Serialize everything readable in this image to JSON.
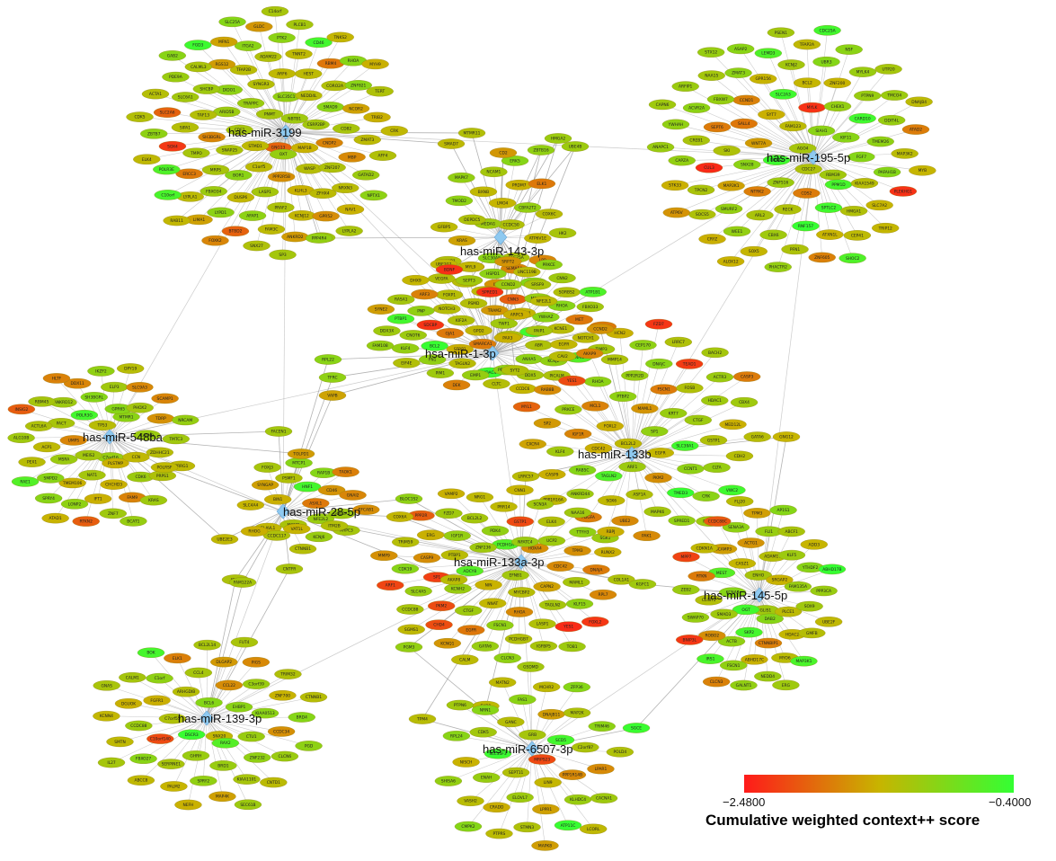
{
  "colors": {
    "low": "#ff1a1a",
    "mid": "#c8b400",
    "high": "#33ff33",
    "hub": "#8ec9f0",
    "edge": "#9a9a9a",
    "node_stroke": "#8a7a10"
  },
  "legend": {
    "min_label": "−2.4800",
    "max_label": "−0.4000",
    "title": "Cumulative weighted context++ score",
    "score_min": -2.48,
    "score_max": -0.4
  },
  "hubs": [
    {
      "id": "mir3199",
      "label": "has-miR-3199",
      "genes": [
        "GNG13",
        "STMD1",
        "PNMT",
        "OXT",
        "CDF2",
        "NBTB1",
        "C1orf5",
        "TRAPPC",
        "MAP1B",
        "SNAP25",
        "SLC35C1",
        "PPP2R5B",
        "ARID5B",
        "CSRP2BP",
        "BOR1",
        "SYNGR3",
        "WASP",
        "SH3BGRL",
        "NEDD4L",
        "LASP1",
        "DIDO1",
        "CNDP2",
        "MRPS",
        "ARF6",
        "KLHL3",
        "TAF13",
        "SMAD9",
        "DUSP6",
        "TFAP2B",
        "ZNF207",
        "TMPO",
        "HEST",
        "PRAF2",
        "SHCBP",
        "CD82",
        "FBXO34",
        "ADAM22",
        "ZFHX4",
        "SIPA1",
        "CORO2A",
        "AFAP1",
        "RGS12",
        "MBP",
        "ERCC3",
        "TNNT2",
        "KCNJ12",
        "SLC6A1",
        "NCOR2",
        "LYPD1",
        "ITGA2",
        "NRXN3",
        "SOX4",
        "RBM4",
        "FAM3C",
        "CALML3",
        "ZMAT3",
        "LYPLA1",
        "PTK2",
        "GPR52",
        "SLC2A6",
        "ZNF821",
        "BTBD2",
        "MFN1",
        "GATAD2",
        "POLR3E",
        "CD46",
        "ANKRD2",
        "PDE9A",
        "TRIB2",
        "LIMA1",
        "GLDC",
        "NAV1",
        "ZBTB7",
        "RHOA",
        "SNX27",
        "FGD3",
        "AFF4",
        "C10orf",
        "PLCB1",
        "CLSTN",
        "ACTA1",
        "TERT",
        "FOXK2",
        "SLC25A",
        "NPTX1",
        "ELK4",
        "TNKS2",
        "SP3",
        "GAB2",
        "CRK",
        "RAB11",
        "C14orf",
        "LYPLA2",
        "CDK5",
        "MYH9"
      ]
    },
    {
      "id": "mir195",
      "label": "has-miR-195-5p",
      "genes": [
        "AGO4",
        "CCNT2",
        "FAM123",
        "CDC27",
        "WNT7A",
        "SIAH1",
        "ZNF516",
        "SYT7",
        "RBM39",
        "SNX28",
        "MYLK",
        "CDS2",
        "SALL4",
        "KIF11",
        "NTRK2",
        "SLC2A3",
        "PPM1D",
        "SKI",
        "CHEK1",
        "RECK",
        "CCND1",
        "FGF7",
        "MAP2K1",
        "BCL2",
        "SPTLC2",
        "SEPT6",
        "CARD10",
        "ARL2",
        "GPR156",
        "KIAA1549",
        "CUL3",
        "ZNF200",
        "RNF157",
        "FBXW7",
        "TMEM26",
        "SMURF2",
        "KCNJ2",
        "HMGA1",
        "CREB1",
        "PTPN9",
        "CBX6",
        "ZMAT3",
        "PAFAH1B",
        "TPCN2",
        "UBR3",
        "ATXN1L",
        "ACVR2A",
        "DDIT4L",
        "WEE1",
        "LEMD3",
        "SLC7A2",
        "CAPZA",
        "MYLK4",
        "PFN1",
        "NAA15",
        "MAP3K2",
        "SOCS5",
        "TFAP2A",
        "CEP41",
        "YWHAH",
        "TMCO4",
        "SOX5",
        "ASAP2",
        "PLEKHG1",
        "STK33",
        "NSF",
        "ZNF605",
        "ARFIP1",
        "ATAD2",
        "CRYZ",
        "PSEN1",
        "TRIP12",
        "ANAPC1",
        "UTP20",
        "PHACTR2",
        "STX12",
        "MYB",
        "ATP6V",
        "CDC25A",
        "SHOC2",
        "CAPN6",
        "DNAJB4",
        "ALOX12"
      ]
    },
    {
      "id": "mir143",
      "label": "has-miR-143-3p",
      "genes": [
        "CCDC50",
        "MEDAG",
        "LMO4",
        "SLC25A",
        "DEPDC5",
        "CBFA2T2",
        "SLC30A8",
        "BXNB",
        "ATP6V1E",
        "KRAS",
        "PRDM7",
        "SEMA5A",
        "TMOD2",
        "COX6C",
        "TCCD1",
        "NCAM1",
        "LPP",
        "GFBP5",
        "ELK1",
        "IRS2",
        "MAPK7",
        "HK2",
        "ATP8B1",
        "ERK5",
        "CITED2"
      ]
    },
    {
      "id": "mir1",
      "label": "hsa-miR-1-3p",
      "genes": [
        "TWF1",
        "GPD2",
        "TRAM2",
        "FZD7",
        "KIF2A",
        "PTPLAD1",
        "SMARCA1",
        "PSMD",
        "CALR",
        "GJA1",
        "CNN3",
        "PAX3",
        "NOTCH3",
        "YWHAZ",
        "SFRP1",
        "LARP1",
        "ABR",
        "SDCBP",
        "MEOX2",
        "HDAC4",
        "FOXP1",
        "KCNE1",
        "BCL2",
        "CCND2",
        "ANXA5",
        "PNP",
        "RHOA",
        "TAGLN2",
        "SLC1A3",
        "EGFR",
        "CNOT6",
        "SRSF9",
        "PPP2R5A",
        "ARF3",
        "MET",
        "FN1",
        "HSPD1",
        "KCNJ2",
        "PTBP1",
        "SORBS2",
        "EMP1",
        "VEGFA",
        "NOTCH1",
        "KLF4",
        "UNC119B",
        "DDX5",
        "RASA1",
        "FBXO33",
        "PIM1",
        "MYL9",
        "SNAI2",
        "DDX3X",
        "CNN2",
        "CLTC",
        "DHX9",
        "TAGLN",
        "EIF4E",
        "SRP72",
        "PICALM",
        "SYNE2",
        "ATP1B1",
        "DEK",
        "UBE2G1",
        "TIMP3",
        "FAM108",
        "PRKCE",
        "CCDC6"
      ]
    },
    {
      "id": "mir548",
      "label": "has-miR-548ba",
      "genes": [
        "C7orf16",
        "MEIS2",
        "TP53",
        "PLSTMP",
        "UMPS",
        "MTMR1",
        "NAT1",
        "POLR3G",
        "CCN",
        "MSRA",
        "GPR65",
        "CHCHD3",
        "PACT",
        "CACNB",
        "TMEM106",
        "SH3BGRL",
        "CDK6",
        "ACP1",
        "PHOX2",
        "IFT1",
        "ANKRD12",
        "ZDHHC21",
        "SMPD2",
        "ELP3",
        "FAM9",
        "ACTL6A",
        "TDRP",
        "LONP2",
        "DDX11",
        "PRPS1",
        "PEX1",
        "SLC9A3",
        "ZNF7",
        "RBM45",
        "TMTC3",
        "SPRY4",
        "IKZF2",
        "KRAS",
        "ALG10B",
        "SCAMP1",
        "RTKN2",
        "HLTF",
        "PRRG1",
        "RAE1",
        "DPY19",
        "BCAT1",
        "INSIG2",
        "NRCAM",
        "ATAD1"
      ]
    },
    {
      "id": "mir28",
      "label": "has-miR-28-5p",
      "genes": [
        "ASXL1",
        "MCMB",
        "HNF1",
        "NFE2L2",
        "BIN1",
        "CD46",
        "VAT1L",
        "PSMF1",
        "GOLGA2",
        "ELAVL1",
        "RAP1B",
        "KCNJ6",
        "SYNGAP",
        "GNAI2",
        "CCDC117",
        "MTCP1",
        "ARPC3",
        "SLC4A4",
        "TAOK1",
        "CTNNB1",
        "FOXJ3",
        "EFCAB1",
        "RHOG"
      ]
    },
    {
      "id": "mir133b",
      "label": "has-miR-133b",
      "genes": [
        "SP1",
        "BCL2L2",
        "MAML1",
        "EGFR",
        "FOXL2",
        "KRT7",
        "ARF1",
        "PTBP2",
        "SLC39A1",
        "CDC42",
        "FSCN1",
        "PKM2",
        "MCL1",
        "CTGF",
        "TAGLN2",
        "PPP2R2D",
        "CCNT1",
        "IGF1R",
        "FOSB",
        "ASF1A",
        "RHOA",
        "GSTP1",
        "RAB5C",
        "DNAJC",
        "TMED3",
        "PRKCE",
        "HDAC1",
        "SOX6",
        "MMP14",
        "CLTA",
        "KLF4",
        "TEAD1",
        "MAPK6",
        "YES1",
        "MED12L",
        "ANKRD44",
        "CEP170",
        "CRK",
        "SP2",
        "ACTR3",
        "UBE2",
        "AKAP9",
        "CDH2",
        "CASP9",
        "LRRC7",
        "SPRED1",
        "RAB8B",
        "CBX4",
        "PDGFA",
        "HCN2",
        "VWC2",
        "CXCR4",
        "BACH2",
        "PAK1",
        "CAV2",
        "GATA6",
        "PPP1R16A",
        "FZD7",
        "PTPRD",
        "MYL1",
        "CASP3",
        "SGK1"
      ]
    },
    {
      "id": "mir133a",
      "label": "hsa-miR-133a-3p",
      "genes": [
        "EFNB1",
        "NIN",
        "PCDHGA",
        "MYCBP2",
        "ADCY8",
        "HOXA4",
        "NNAT",
        "ZNF236",
        "CAPN2",
        "KCNH2",
        "NFATC4",
        "RHOA",
        "PTBP1",
        "CDC42",
        "CTGF",
        "PDK4",
        "TAGLN2",
        "SP1",
        "UCP2",
        "FSCN1",
        "IGF1R",
        "MAML1",
        "PKM2",
        "GSTP1",
        "LASP1",
        "CASP9",
        "TPM3",
        "EGFR",
        "BCL2L2",
        "KLF15",
        "SLC4A5",
        "ELK4",
        "PCDHGB7",
        "ERG",
        "DNAJA",
        "CHD4",
        "PRR14",
        "YES1",
        "CDK19",
        "TTYH3",
        "GATA6",
        "FZD7",
        "RPL7",
        "CCDC88",
        "SCN3A",
        "IGFBP5",
        "TRIM59",
        "RUNX2",
        "KCNQ1",
        "NRG1",
        "FOXL2",
        "ARF1",
        "NAA16",
        "CLCN3",
        "PPP2R",
        "COL1A1",
        "SGMS1",
        "CNN1",
        "TOB1",
        "MMP9",
        "RBPJ",
        "CALM",
        "VAMP2"
      ]
    },
    {
      "id": "mir145",
      "label": "has-miR-145-5p",
      "genes": [
        "GLIS1",
        "OGT",
        "ENHO",
        "DAB2",
        "KCNA4",
        "SRGAP2",
        "SKP2",
        "CASZ1",
        "PLCE1",
        "SMAD3",
        "ADAM17",
        "CTNNBIP1",
        "MEST",
        "FAM135A",
        "ACTB",
        "ACTG1",
        "HDAC2",
        "CLINT1",
        "KLF5",
        "ABHD17C",
        "SCAMP3",
        "SOX9",
        "ROBO2",
        "FLI1",
        "MYO6",
        "RTKN",
        "YTHDF2",
        "FSCN1",
        "SENA3A",
        "GMFB",
        "SWAP70",
        "ABCF1",
        "NEDD4",
        "CDKN1A",
        "PPP3CA",
        "IRS1",
        "TPM3",
        "MAP3K1",
        "ZEB2",
        "ADD3",
        "GALNT1",
        "CCDC88C",
        "UBE2F",
        "BNIP3L",
        "AP1S1",
        "ERG",
        "MPP7",
        "ABHD17B",
        "CLCN3",
        "FLJ20"
      ]
    },
    {
      "id": "mir139",
      "label": "has-miR-139-3p",
      "genes": [
        "SNX20",
        "DSCR3",
        "BCL6",
        "RAX2",
        "C7orf55",
        "EHBP1",
        "GHRH",
        "ARHGDIB",
        "CTU1",
        "C10orf140",
        "CCL22",
        "BRD1",
        "FGFR1",
        "KIAA0513",
        "SERPINE1",
        "CCL4",
        "ZNF232",
        "CCDC88",
        "C3orf39",
        "SPRY2",
        "C1orf",
        "CCDC34",
        "FBXO27",
        "DLGAP2",
        "KIAA1101",
        "DGUOK",
        "ZNF700",
        "PALM2",
        "ELK1",
        "CLCN6",
        "SMTN",
        "PIGS",
        "MAP4K",
        "CALM1",
        "BRD4",
        "ABCC8",
        "BCL2L14",
        "CNTD1",
        "KCNN4",
        "TRIM32",
        "NEFH",
        "BOK",
        "PGD",
        "IL27",
        "FUT4",
        "SEC61B",
        "GNAS",
        "CTNNB1"
      ]
    },
    {
      "id": "mir6507",
      "label": "has-miR-6507-3p",
      "genes": [
        "MRPS23",
        "SEPT11",
        "GRB",
        "LIN9",
        "SLC35F3",
        "SCD5",
        "ELOVL7",
        "GANC",
        "PPP1R14B",
        "ENAH",
        "DNAJB11",
        "LPPR1",
        "CDK5",
        "C2orf87",
        "CRADD",
        "FAS1",
        "KLHDC4",
        "NISCH",
        "MAP2K",
        "STMN3",
        "EXD1",
        "LPAR1",
        "VASH2",
        "MCHR2",
        "ATP11C",
        "RPL24",
        "TRIM46",
        "PTPRS",
        "MATN2",
        "CACNA1",
        "SHISA6",
        "ZFP36",
        "MAPK8",
        "PTPN6",
        "POLD4",
        "CMPK2",
        "GSDMD",
        "LCORL"
      ]
    }
  ],
  "bridge_nodes": [
    "MTMR11",
    "HMGA2",
    "SMAD7",
    "ZBTB16",
    "CD2",
    "UBE4B",
    "BDNF",
    "SEPT3",
    "SPRED1",
    "PAIP1",
    "CCND2",
    "ARPC5",
    "NFE2L1",
    "ITM2B",
    "CNTFR",
    "UBE2E3",
    "IGCK",
    "RPL22",
    "TFRC",
    "VAPB",
    "TOLPD1",
    "POLRSF",
    "FAM122A",
    "GNG12",
    "SYT2",
    "PPP4R4",
    "FACEN1",
    "COX6A",
    "BLOC1S2",
    "LRRC57",
    "PGM3",
    "AKAP8",
    "KGFC1",
    "TPM4",
    "NRN1",
    "SGCE"
  ]
}
